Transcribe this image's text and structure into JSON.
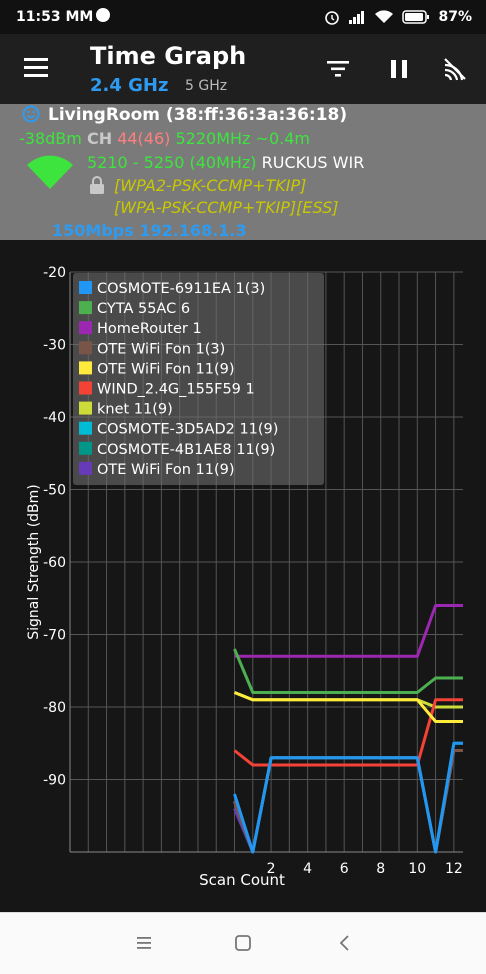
{
  "status_bar": {
    "time": "11:53 MM",
    "battery": "87%"
  },
  "header": {
    "title": "Time Graph",
    "band_selected": "2.4 GHz",
    "band_other": "5 GHz"
  },
  "connection": {
    "ssid": "LivingRoom (38:ff:36:3a:36:18)",
    "level": "-38dBm",
    "ch_label": "CH",
    "channel": "44(46)",
    "freq": "5220MHz",
    "distance": "~0.4m",
    "range": "5210 - 5250 (40MHz)",
    "vendor": "RUCKUS WIR",
    "security1": "[WPA2-PSK-CCMP+TKIP]",
    "security2": "[WPA-PSK-CCMP+TKIP][ESS]",
    "speed_ip": "150Mbps 192.168.1.3",
    "colors": {
      "ssid_icon": "#2f9bf0",
      "level": "#3ee43e",
      "channel": "#ff7f7f",
      "freq": "#3ee43e",
      "security": "#c8c800",
      "speed": "#2f9bf0"
    }
  },
  "chart_data": {
    "type": "line",
    "xlabel": "Scan Count",
    "ylabel": "Signal Strength (dBm)",
    "xlim": [
      -9,
      12.5
    ],
    "ylim": [
      -100,
      -20
    ],
    "xticks": [
      2,
      4,
      6,
      8,
      10,
      12
    ],
    "yticks": [
      -20,
      -30,
      -40,
      -50,
      -60,
      -70,
      -80,
      -90
    ],
    "grid": true,
    "legend_position": "top-left",
    "series": [
      {
        "name": "COSMOTE-6911EA 1(3)",
        "color": "#2196f3",
        "x": [
          0,
          1,
          2,
          10,
          11,
          12,
          12.5
        ],
        "y": [
          -92,
          -100,
          -87,
          -87,
          -100,
          -85,
          -85
        ]
      },
      {
        "name": "CYTA 55AC 6",
        "color": "#4caf50",
        "x": [
          0,
          1,
          10,
          11,
          12.5
        ],
        "y": [
          -72,
          -78,
          -78,
          -76,
          -76
        ]
      },
      {
        "name": "HomeRouter 1",
        "color": "#9c27b0",
        "x": [
          0,
          1,
          10,
          11,
          12.5
        ],
        "y": [
          -73,
          -73,
          -73,
          -66,
          -66
        ]
      },
      {
        "name": "OTE WiFi Fon 1(3)",
        "color": "#795548",
        "x": [
          0,
          1,
          2,
          10,
          11,
          12,
          12.5
        ],
        "y": [
          -93,
          -100,
          -87,
          -87,
          -100,
          -86,
          -86
        ]
      },
      {
        "name": "OTE WiFi Fon 11(9)",
        "color": "#ffeb3b",
        "x": [
          0,
          1,
          10,
          11,
          12.5
        ],
        "y": [
          -78,
          -79,
          -79,
          -82,
          -82
        ]
      },
      {
        "name": "WIND_2.4G_155F59 1",
        "color": "#f44336",
        "x": [
          0,
          1,
          10,
          11,
          12.5
        ],
        "y": [
          -86,
          -88,
          -88,
          -79,
          -79
        ]
      },
      {
        "name": "knet 11(9)",
        "color": "#cddc39",
        "x": [
          0,
          1,
          10,
          11,
          12.5
        ],
        "y": [
          -78,
          -79,
          -79,
          -80,
          -80
        ]
      },
      {
        "name": "COSMOTE-3D5AD2 11(9)",
        "color": "#00bcd4",
        "x": [
          0,
          1,
          2,
          10,
          11,
          12,
          12.5
        ],
        "y": [
          -93,
          -100,
          -87,
          -87,
          -100,
          -86,
          -86
        ]
      },
      {
        "name": "COSMOTE-4B1AE8 11(9)",
        "color": "#009688",
        "x": [
          0,
          1,
          2,
          10,
          11,
          12,
          12.5
        ],
        "y": [
          -93,
          -100,
          -87,
          -87,
          -100,
          -85,
          -85
        ]
      },
      {
        "name": "OTE WiFi Fon 11(9)",
        "color": "#673ab7",
        "x": [
          0,
          1,
          2,
          10,
          11,
          12,
          12.5
        ],
        "y": [
          -94,
          -100,
          -87,
          -87,
          -100,
          -86,
          -86
        ]
      }
    ]
  },
  "icons": {
    "menu": "menu-icon",
    "filter": "filter-icon",
    "pause": "pause-icon",
    "scan": "wifi-scan-icon",
    "lock": "lock-icon",
    "wifi": "wifi-signal-icon",
    "smile": "smile-icon"
  }
}
